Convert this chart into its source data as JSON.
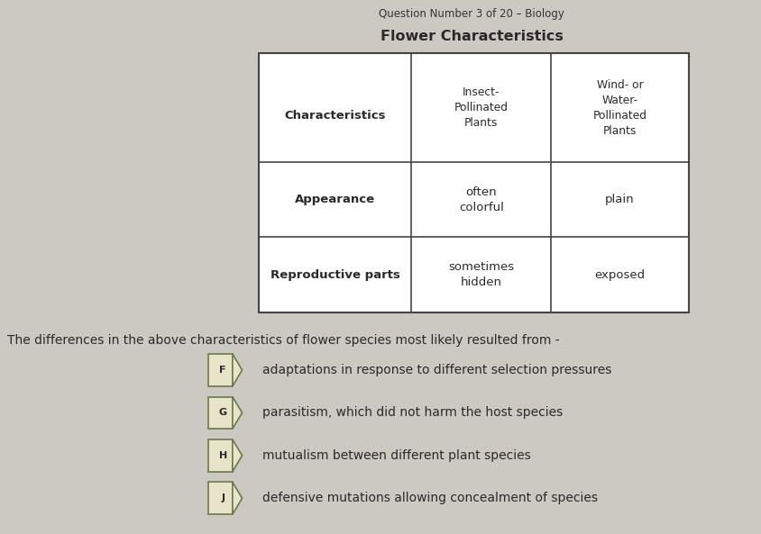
{
  "background_color": "#ccc8c2",
  "top_text": "Question Number 3 of 20 – Biology",
  "table_title": "Flower Characteristics",
  "table": {
    "col_headers": [
      "Characteristics",
      "Insect-\nPollinated\nPlants",
      "Wind- or\nWater-\nPollinated\nPlants"
    ],
    "rows": [
      [
        "Appearance",
        "often\ncolorful",
        "plain"
      ],
      [
        "Reproductive parts",
        "sometimes\nhidden",
        "exposed"
      ]
    ]
  },
  "question_text": "The differences in the above characteristics of flower species most likely resulted from -",
  "answer_options": [
    {
      "label": "F",
      "text": "adaptations in response to different selection pressures"
    },
    {
      "label": "G",
      "text": "parasitism, which did not harm the host species"
    },
    {
      "label": "H",
      "text": "mutualism between different plant species"
    },
    {
      "label": "J",
      "text": "defensive mutations allowing concealment of species"
    }
  ],
  "text_color": "#2a2a2a",
  "border_color": "#444444",
  "badge_bg": "#e8e4c8",
  "badge_border": "#6b7a4a"
}
